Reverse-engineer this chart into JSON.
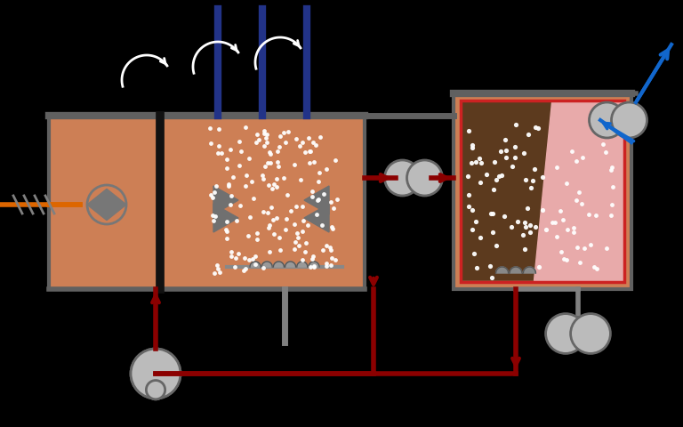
{
  "bg_color": "#000000",
  "copper": "#CD7F55",
  "copper_dark": "#B8673C",
  "tank_border": "#606060",
  "dark_sludge": "#5C3A1E",
  "pink_zone": "#E8AAAA",
  "red_pipe": "#8B0000",
  "blue_arrow_color": "#1166CC",
  "orange_color": "#DD6600",
  "gray_pipe": "#808080",
  "pump_fill": "#BBBBBB",
  "pump_edge": "#666666",
  "blue_rod": "#223388",
  "white": "#FFFFFF",
  "dark_gray": "#444444",
  "medium_gray": "#666666",
  "light_gray": "#999999",
  "red_border": "#CC2222"
}
